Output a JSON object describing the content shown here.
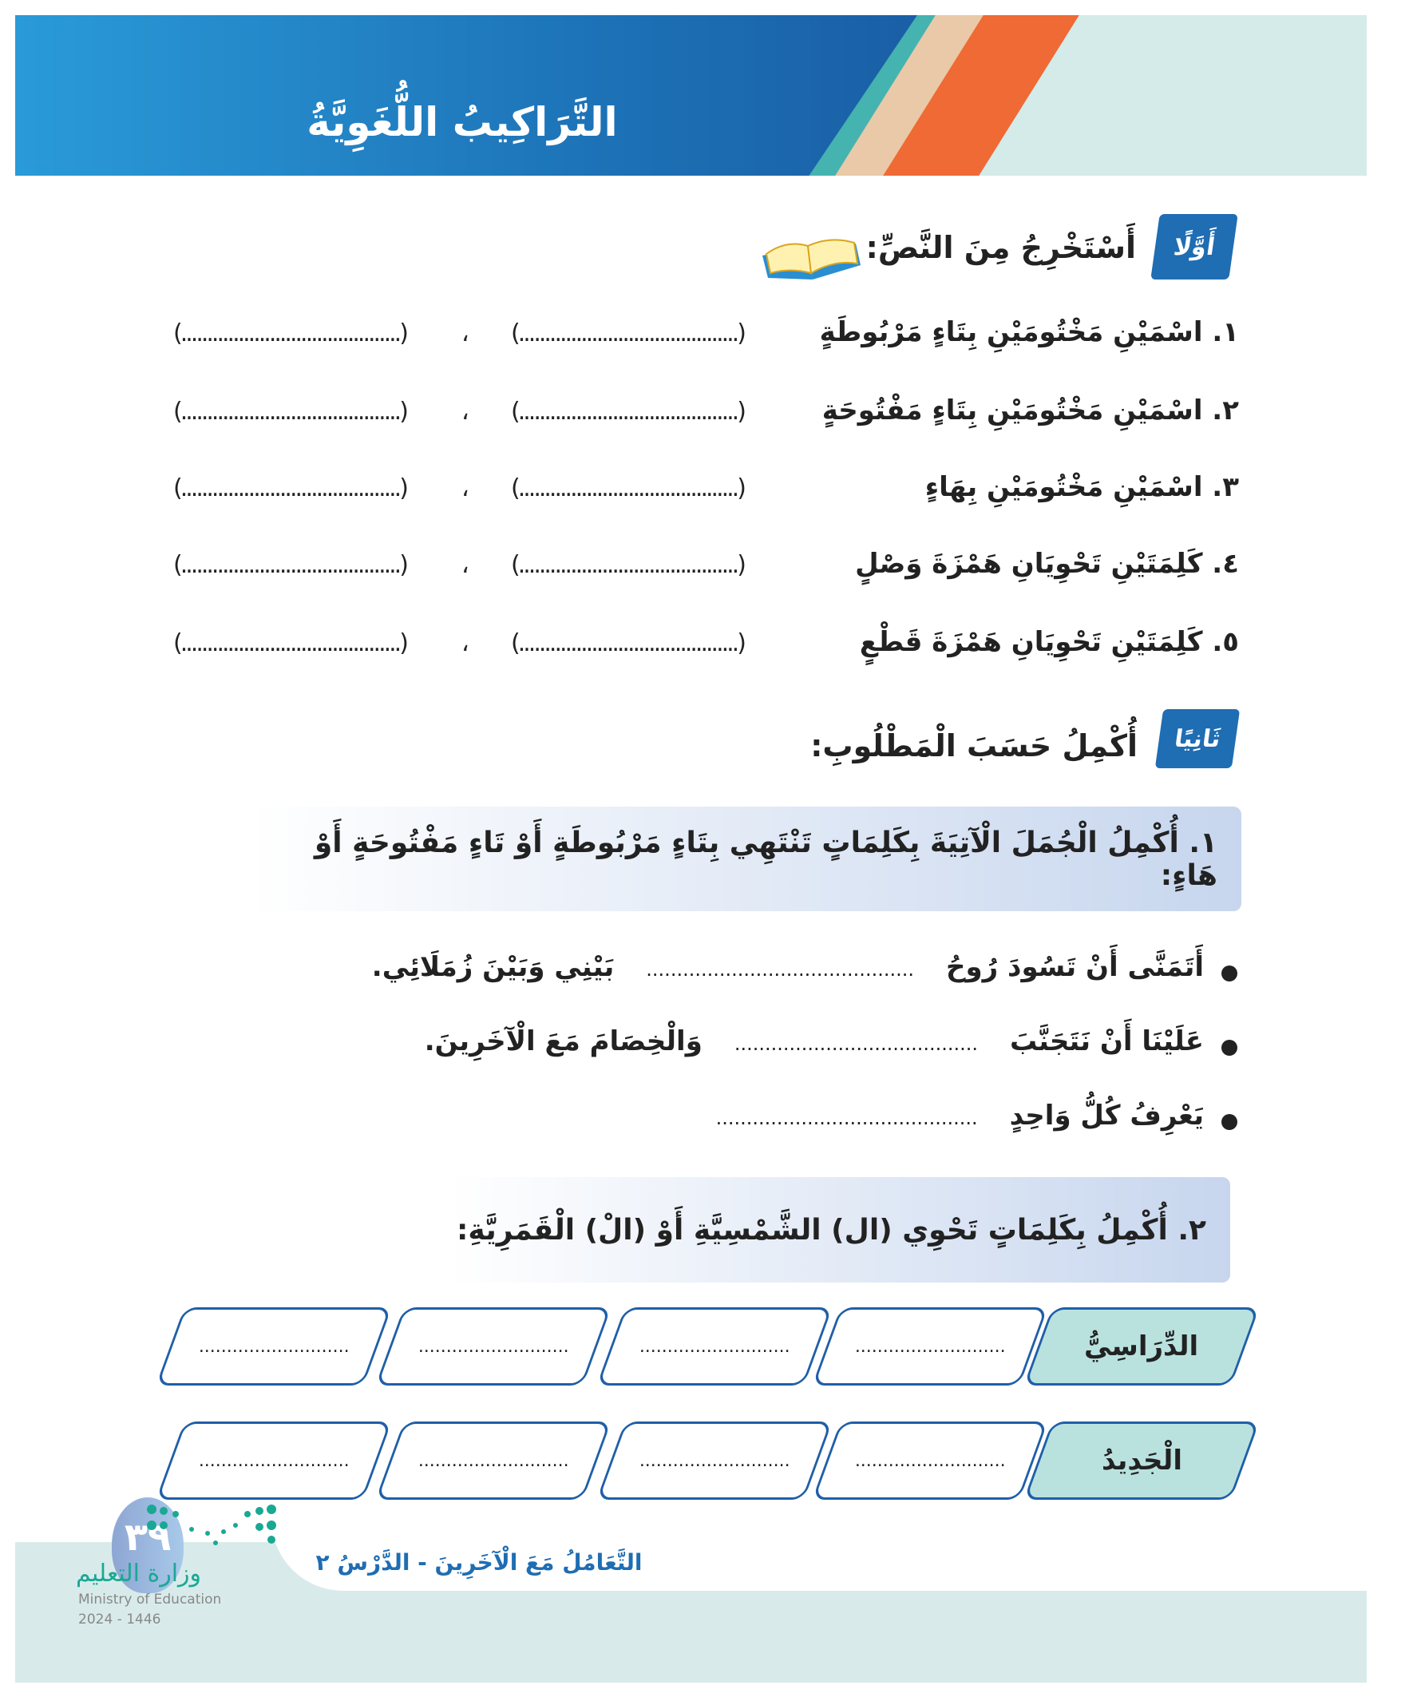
{
  "header": {
    "title": "التَّرَاكِيبُ اللُّغَوِيَّةُ"
  },
  "section1": {
    "badge": "أَوَّلًا",
    "title": "أَسْتَخْرِجُ مِنَ النَّصِّ:",
    "icon": "open-book-icon",
    "items": [
      {
        "label": "١. اسْمَيْنِ مَخْتُومَيْنِ بِتَاءٍ مَرْبُوطَةٍ"
      },
      {
        "label": "٢. اسْمَيْنِ مَخْتُومَيْنِ بِتَاءٍ مَفْتُوحَةٍ"
      },
      {
        "label": "٣. اسْمَيْنِ مَخْتُومَيْنِ بِهَاءٍ"
      },
      {
        "label": "٤. كَلِمَتَيْنِ تَحْوِيَانِ هَمْزَةَ وَصْلٍ"
      },
      {
        "label": "٥. كَلِمَتَيْنِ تَحْوِيَانِ هَمْزَةَ قَطْعٍ"
      }
    ],
    "blank": "(..........................................)",
    "separator": "،"
  },
  "section2": {
    "badge": "ثَانِيًا",
    "title": "أُكْمِلُ حَسَبَ الْمَطْلُوبِ:",
    "task1": {
      "title": "١. أُكْمِلُ الْجُمَلَ الْآتِيَةَ بِكَلِمَاتٍ تَنْتَهِي بِتَاءٍ مَرْبُوطَةٍ أَوْ تَاءٍ مَفْتُوحَةٍ أَوْ هَاءٍ:",
      "sentences": [
        {
          "start": "أَتَمَنَّى أَنْ تَسُودَ رُوحُ",
          "blank": "............................................",
          "end": "بَيْنِي وَبَيْنَ زُمَلَائِي."
        },
        {
          "start": "عَلَيْنَا أَنْ نَتَجَنَّبَ",
          "blank": "........................................",
          "end": "وَالْخِصَامَ مَعَ الْآخَرِينَ."
        },
        {
          "start": "يَعْرِفُ كُلُّ وَاحِدٍ",
          "blank": "...........................................",
          "end": ""
        }
      ]
    },
    "task2": {
      "title": "٢. أُكْمِلُ بِكَلِمَاتٍ تَحْوِي (ال) الشَّمْسِيَّةِ أَوْ (الْ) الْقَمَرِيَّةِ:",
      "rows": [
        {
          "label": "الدِّرَاسِيُّ",
          "blanks": [
            "...........................",
            "...........................",
            "...........................",
            "...........................",
            "..........................."
          ]
        },
        {
          "label": "الْجَدِيدُ",
          "blanks": [
            "...........................",
            "...........................",
            "...........................",
            "...........................",
            "..........................."
          ]
        }
      ]
    }
  },
  "footer": {
    "lesson": "التَّعَامُلُ مَعَ الْآخَرِينَ - الدَّرْسُ ٢",
    "page_number": "٣٩",
    "ministry_ar": "وزارة التعليم",
    "ministry_en": "Ministry of Education",
    "year": "2024 - 1446"
  },
  "colors": {
    "blue": "#1f6db3",
    "teal_light": "#d4ebe9",
    "orange": "#ef6a34",
    "peach": "#e9c9a8",
    "teal": "#45b3b0"
  }
}
